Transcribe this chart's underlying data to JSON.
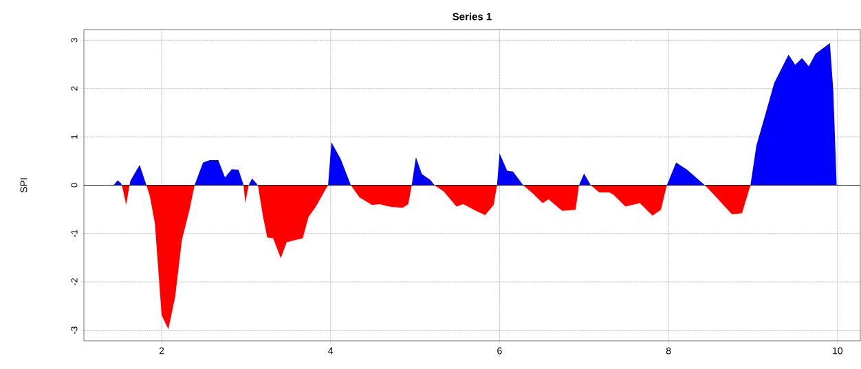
{
  "chart_data": {
    "type": "area",
    "title": "Series 1",
    "ylabel": "SPI",
    "x": [
      1.43,
      1.48,
      1.52,
      1.53,
      1.58,
      1.62,
      1.63,
      1.74,
      1.82,
      1.86,
      1.92,
      2.0,
      2.08,
      2.16,
      2.24,
      2.33,
      2.39,
      2.49,
      2.57,
      2.67,
      2.75,
      2.83,
      2.91,
      2.95,
      2.97,
      2.99,
      3.03,
      3.07,
      3.14,
      3.2,
      3.25,
      3.32,
      3.41,
      3.48,
      3.59,
      3.67,
      3.74,
      3.82,
      3.92,
      3.97,
      4.01,
      4.12,
      4.24,
      4.34,
      4.49,
      4.58,
      4.69,
      4.85,
      4.92,
      4.96,
      5.01,
      5.08,
      5.18,
      5.23,
      5.34,
      5.49,
      5.57,
      5.72,
      5.83,
      5.93,
      5.97,
      6.0,
      6.09,
      6.16,
      6.28,
      6.4,
      6.51,
      6.58,
      6.74,
      6.9,
      6.94,
      7.0,
      7.08,
      7.18,
      7.3,
      7.35,
      7.49,
      7.66,
      7.81,
      7.91,
      7.98,
      8.09,
      8.22,
      8.43,
      8.55,
      8.75,
      8.87,
      8.97,
      9.04,
      9.15,
      9.25,
      9.42,
      9.5,
      9.58,
      9.66,
      9.74,
      9.91,
      9.95,
      9.99
    ],
    "series": [
      {
        "color": "#0000ff",
        "values": [
          0,
          0.1,
          0.04,
          0,
          0,
          0,
          0.09,
          0.42,
          0,
          0,
          0,
          0,
          0,
          0,
          0,
          0,
          0,
          0.47,
          0.52,
          0.52,
          0.16,
          0.33,
          0.32,
          0.11,
          0,
          0,
          0,
          0.14,
          0,
          0,
          0,
          0,
          0,
          0,
          0,
          0,
          0,
          0,
          0,
          0,
          0.89,
          0.54,
          0,
          0,
          0,
          0,
          0,
          0,
          0,
          0,
          0.58,
          0.23,
          0.11,
          0,
          0,
          0,
          0,
          0,
          0,
          0,
          0,
          0.66,
          0.3,
          0.28,
          0,
          0,
          0,
          0,
          0,
          0,
          0,
          0.24,
          0,
          0,
          0,
          0,
          0,
          0,
          0,
          0,
          0,
          0.47,
          0.32,
          0,
          0,
          0,
          0,
          0,
          0.82,
          1.49,
          2.11,
          2.7,
          2.49,
          2.63,
          2.46,
          2.72,
          2.94,
          1.96,
          0
        ]
      },
      {
        "color": "#ff0000",
        "values": [
          0,
          0,
          0,
          0,
          -0.41,
          0,
          0,
          0,
          0,
          -0.22,
          -0.79,
          -2.69,
          -2.98,
          -2.31,
          -1.13,
          -0.51,
          0,
          0,
          0,
          0,
          0,
          0,
          0,
          0,
          0,
          -0.37,
          0,
          0,
          0,
          -0.65,
          -1.08,
          -1.1,
          -1.51,
          -1.18,
          -1.13,
          -1.1,
          -0.65,
          -0.46,
          -0.15,
          0,
          0,
          0,
          0,
          -0.25,
          -0.41,
          -0.39,
          -0.44,
          -0.47,
          -0.39,
          0,
          0,
          0,
          0,
          0,
          -0.13,
          -0.44,
          -0.39,
          -0.53,
          -0.62,
          -0.41,
          0,
          0,
          0,
          0,
          0,
          -0.18,
          -0.37,
          -0.29,
          -0.53,
          -0.51,
          0,
          0,
          0,
          -0.15,
          -0.15,
          -0.2,
          -0.44,
          -0.37,
          -0.63,
          -0.51,
          0,
          0,
          0,
          0,
          -0.22,
          -0.6,
          -0.58,
          0,
          0,
          0,
          0,
          0,
          0,
          0,
          0,
          0,
          0,
          0,
          0
        ]
      }
    ],
    "xlim": [
      1.08,
      10.27
    ],
    "ylim": [
      -3.22,
      3.22
    ],
    "xticks": [
      2,
      4,
      6,
      8,
      10
    ],
    "yticks": [
      -3,
      -2,
      -1,
      0,
      1,
      2,
      3
    ],
    "grid": true,
    "ref_lines": [
      {
        "axis": "y",
        "value": 0
      }
    ]
  }
}
